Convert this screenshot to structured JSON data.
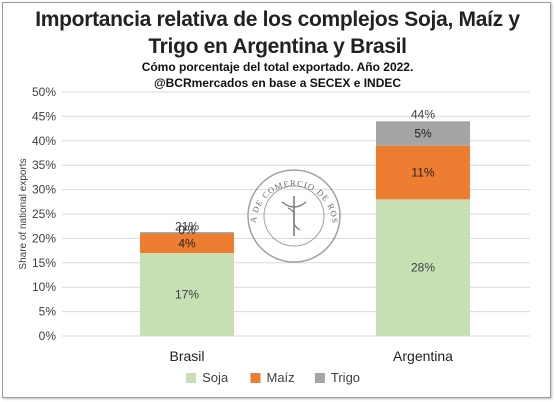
{
  "chart_data": {
    "type": "bar",
    "stacked": true,
    "title_line1": "Importancia relativa de los complejos Soja, Maíz y",
    "title_line2": "Trigo en Argentina y Brasil",
    "subtitle_line1": "Cómo porcentaje del total exportado. Año 2022.",
    "subtitle_line2": "@BCRmercados en base a SECEX e INDEC",
    "ylabel": "Share of national exports",
    "xlabel": "",
    "ylim": [
      0,
      50
    ],
    "yticks": [
      "0%",
      "5%",
      "10%",
      "15%",
      "20%",
      "25%",
      "30%",
      "35%",
      "40%",
      "45%",
      "50%"
    ],
    "grid": true,
    "legend_position": "bottom",
    "categories": [
      "Brasil",
      "Argentina"
    ],
    "series": [
      {
        "name": "Soja",
        "color": "#c6e0b4",
        "values": [
          17,
          28
        ],
        "labels": [
          "17%",
          "28%"
        ]
      },
      {
        "name": "Maíz",
        "color": "#ed7d31",
        "values": [
          4,
          11
        ],
        "labels": [
          "4%",
          "11%"
        ]
      },
      {
        "name": "Trigo",
        "color": "#a5a5a5",
        "values": [
          0.3,
          5
        ],
        "labels": [
          "0%",
          "5%"
        ]
      }
    ],
    "totals": [
      21,
      44
    ],
    "total_labels": [
      "21%",
      "44%"
    ],
    "watermark_text": "BOLSA DE COMERCIO DE ROSARIO"
  }
}
